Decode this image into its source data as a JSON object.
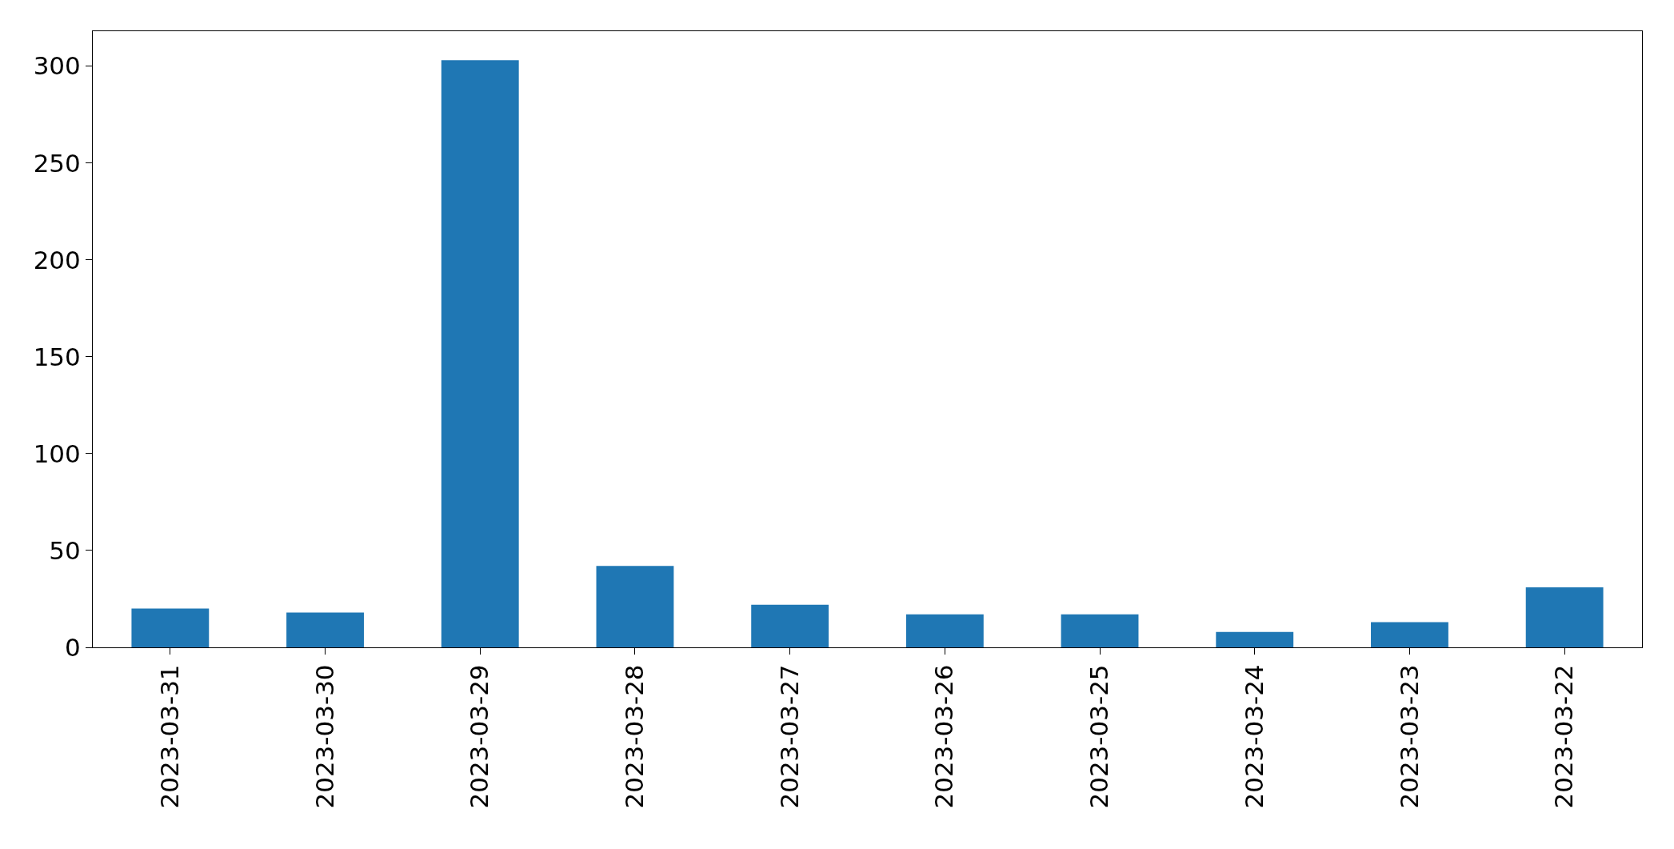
{
  "chart_data": {
    "type": "bar",
    "categories": [
      "2023-03-31",
      "2023-03-30",
      "2023-03-29",
      "2023-03-28",
      "2023-03-27",
      "2023-03-26",
      "2023-03-25",
      "2023-03-24",
      "2023-03-23",
      "2023-03-22"
    ],
    "values": [
      20,
      18,
      303,
      42,
      22,
      17,
      17,
      8,
      13,
      31
    ],
    "color": "#1f77b4",
    "ylim": [
      0,
      318
    ],
    "yticks": [
      0,
      50,
      100,
      150,
      200,
      250,
      300
    ]
  }
}
